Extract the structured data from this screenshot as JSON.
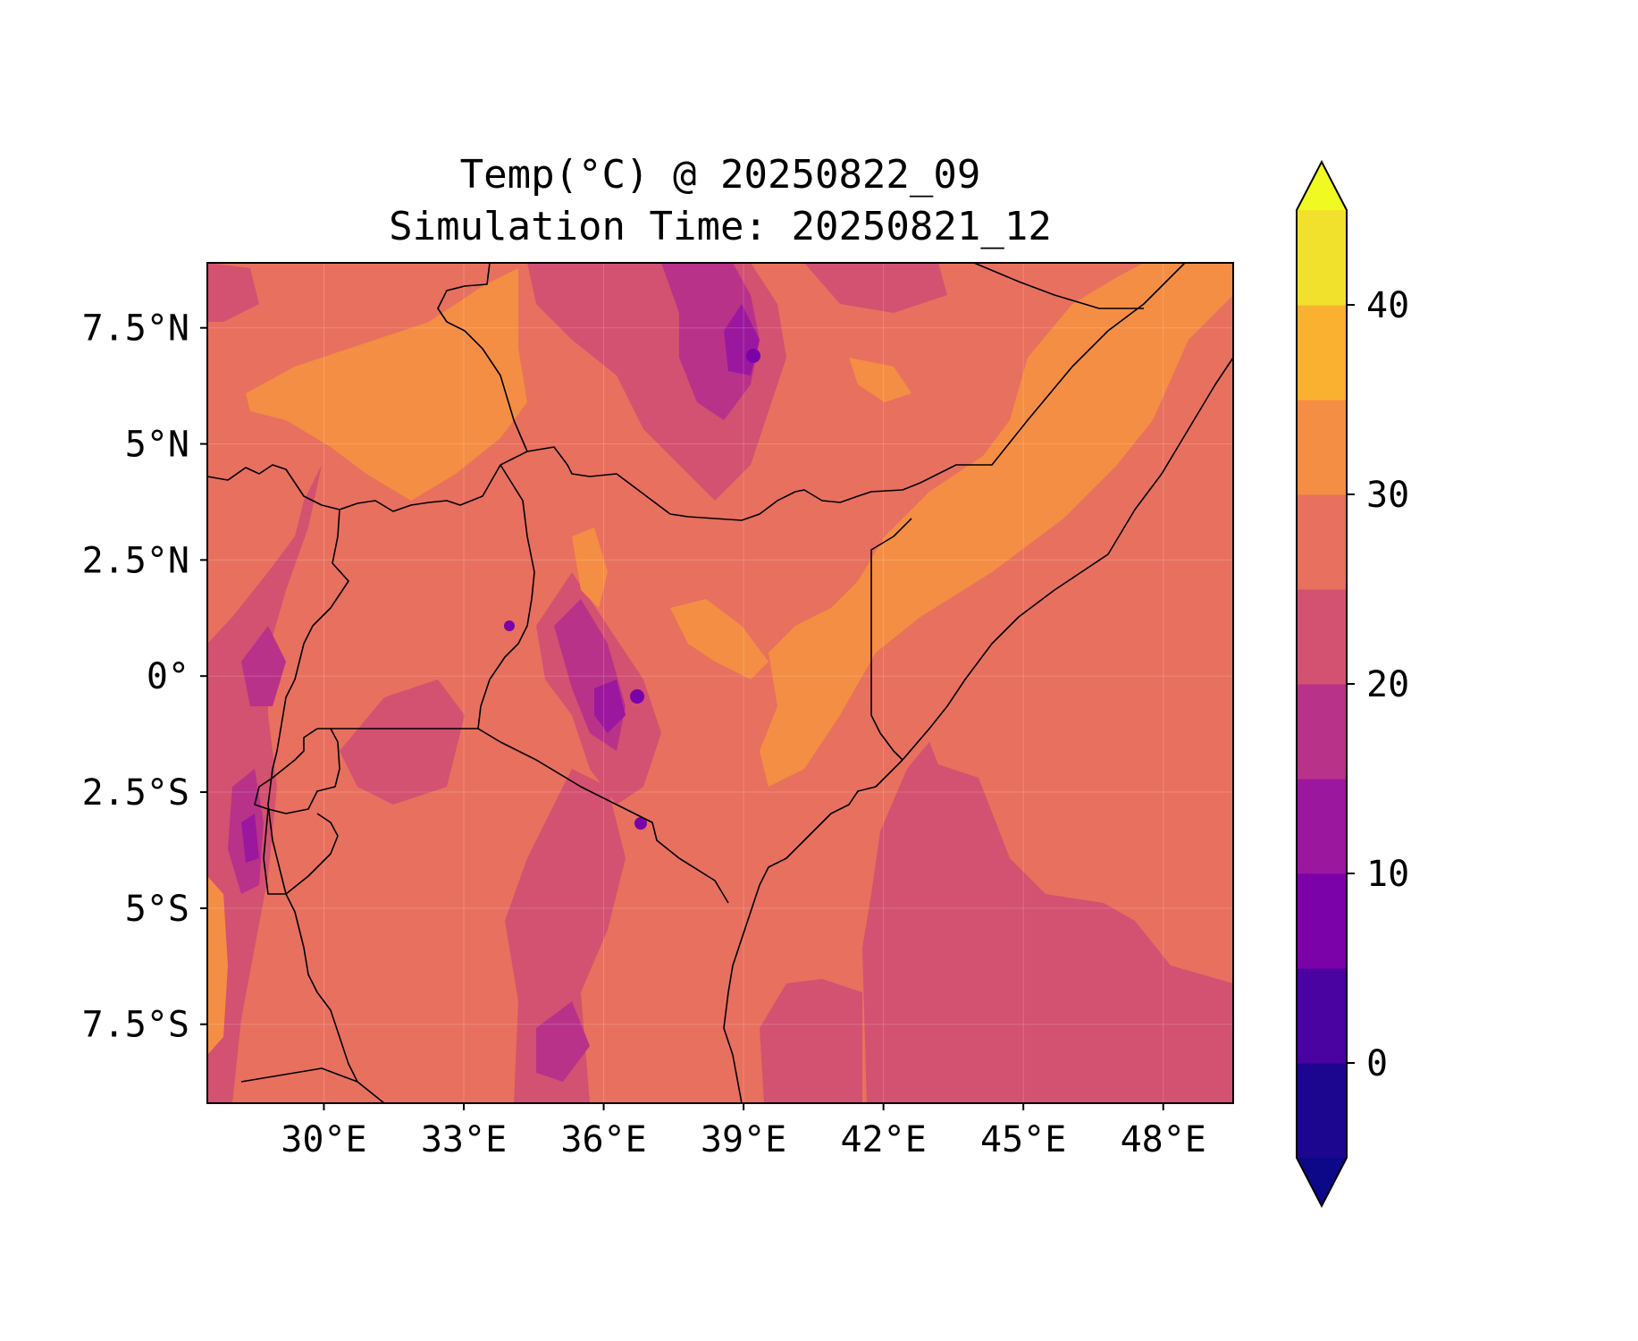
{
  "title": {
    "line1": "Temp(°C) @ 20250822_09",
    "line2": "Simulation Time: 20250821_12"
  },
  "map": {
    "lon_range": [
      27.5,
      49.5
    ],
    "lat_range": [
      -9.2,
      8.9
    ],
    "x_ticks": [
      {
        "value": 30,
        "label": "30°E"
      },
      {
        "value": 33,
        "label": "33°E"
      },
      {
        "value": 36,
        "label": "36°E"
      },
      {
        "value": 39,
        "label": "39°E"
      },
      {
        "value": 42,
        "label": "42°E"
      },
      {
        "value": 45,
        "label": "45°E"
      },
      {
        "value": 48,
        "label": "48°E"
      }
    ],
    "y_ticks": [
      {
        "value": 7.5,
        "label": "7.5°N"
      },
      {
        "value": 5,
        "label": "5°N"
      },
      {
        "value": 2.5,
        "label": "2.5°N"
      },
      {
        "value": 0,
        "label": "0°"
      },
      {
        "value": -2.5,
        "label": "2.5°S"
      },
      {
        "value": -5,
        "label": "5°S"
      },
      {
        "value": -7.5,
        "label": "7.5°S"
      }
    ]
  },
  "colorbar": {
    "colormap": "plasma",
    "levels": [
      -5,
      0,
      5,
      10,
      15,
      20,
      25,
      30,
      35,
      40,
      45
    ],
    "colors": [
      "#1d068f",
      "#4a02a0",
      "#7a02a8",
      "#9b179e",
      "#b83289",
      "#d35171",
      "#e8705e",
      "#f48e44",
      "#fbb130",
      "#f2e12c"
    ],
    "under_color": "#0d0887",
    "over_color": "#f0f921",
    "extend": "both",
    "tick_values": [
      0,
      10,
      20,
      30,
      40
    ],
    "tick_labels": [
      "0",
      "10",
      "20",
      "30",
      "40"
    ]
  }
}
